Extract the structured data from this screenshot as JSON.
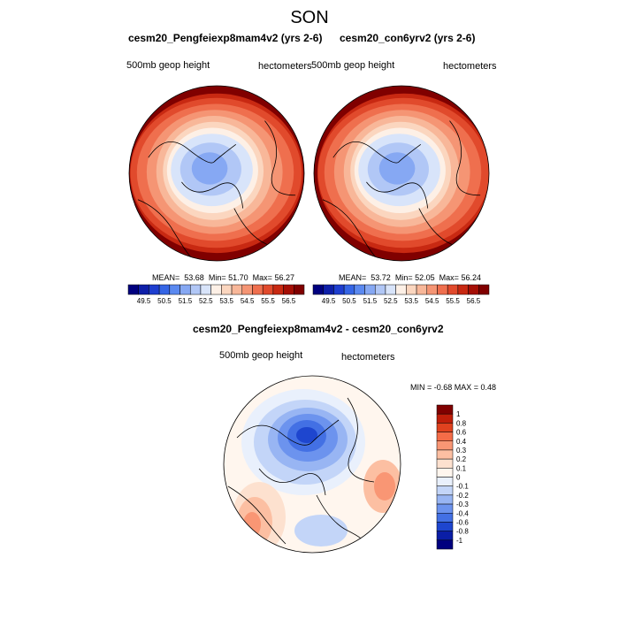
{
  "title": "SON",
  "panels": [
    {
      "title": "cesm20_Pengfeiexp8mam4v2 (yrs 2-6)",
      "left_label": "500mb geop height",
      "right_label": "hectometers",
      "stats": {
        "mean_label": "MEAN=",
        "mean": "53.68",
        "min_label": "Min=",
        "min": "51.70",
        "max_label": "Max=",
        "max": "56.27"
      }
    },
    {
      "title": "cesm20_con6yrv2 (yrs 2-6)",
      "left_label": "500mb geop height",
      "right_label": "hectometers",
      "stats": {
        "mean_label": "MEAN=",
        "mean": "53.72",
        "min_label": "Min=",
        "min": "52.05",
        "max_label": "Max=",
        "max": "56.24"
      }
    }
  ],
  "diff": {
    "title": "cesm20_Pengfeiexp8mam4v2 - cesm20_con6yrv2",
    "left_label": "500mb geop height",
    "right_label": "hectometers",
    "minmax": "MIN =  -0.68 MAX =   0.48"
  },
  "chart_data": [
    {
      "type": "heatmap",
      "projection": "north-polar-stereographic",
      "title": "cesm20_Pengfeiexp8mam4v2 (yrs 2-6)",
      "variable": "500mb geop height",
      "units": "hectometers",
      "mean": 53.68,
      "min": 51.7,
      "max": 56.27,
      "colorbar": {
        "ticks": [
          "49.5",
          "50.5",
          "51.5",
          "52.5",
          "53.5",
          "54.5",
          "55.5",
          "56.5"
        ],
        "colors": [
          "#00007f",
          "#0e1fa8",
          "#1e3ecf",
          "#3565e5",
          "#5b89f0",
          "#86a8f3",
          "#b1c7f6",
          "#d8e4fa",
          "#fdf0e6",
          "#fbd6bf",
          "#f8b799",
          "#f59574",
          "#ef6f4e",
          "#e14a2c",
          "#c82912",
          "#a50f05",
          "#800000"
        ]
      }
    },
    {
      "type": "heatmap",
      "projection": "north-polar-stereographic",
      "title": "cesm20_con6yrv2 (yrs 2-6)",
      "variable": "500mb geop height",
      "units": "hectometers",
      "mean": 53.72,
      "min": 52.05,
      "max": 56.24,
      "colorbar": {
        "ticks": [
          "49.5",
          "50.5",
          "51.5",
          "52.5",
          "53.5",
          "54.5",
          "55.5",
          "56.5"
        ],
        "colors": [
          "#00007f",
          "#0e1fa8",
          "#1e3ecf",
          "#3565e5",
          "#5b89f0",
          "#86a8f3",
          "#b1c7f6",
          "#d8e4fa",
          "#fdf0e6",
          "#fbd6bf",
          "#f8b799",
          "#f59574",
          "#ef6f4e",
          "#e14a2c",
          "#c82912",
          "#a50f05",
          "#800000"
        ]
      }
    },
    {
      "type": "heatmap",
      "projection": "north-polar-stereographic",
      "title": "cesm20_Pengfeiexp8mam4v2 - cesm20_con6yrv2",
      "variable": "500mb geop height",
      "units": "hectometers",
      "min": -0.68,
      "max": 0.48,
      "colorbar": {
        "orientation": "vertical",
        "ticks": [
          "1",
          "0.8",
          "0.6",
          "0.4",
          "0.3",
          "0.2",
          "0.1",
          "0",
          "-0.1",
          "-0.2",
          "-0.3",
          "-0.4",
          "-0.6",
          "-0.8",
          "-1"
        ],
        "colors": [
          "#800000",
          "#bf1e0a",
          "#e0421f",
          "#f46c48",
          "#f99674",
          "#fcbfa2",
          "#fde1cf",
          "#fff6ee",
          "#e9f0fc",
          "#c3d5f8",
          "#98b5f3",
          "#6c93ee",
          "#4370e4",
          "#1e46cf",
          "#0a1ea6",
          "#00007f"
        ]
      }
    }
  ]
}
